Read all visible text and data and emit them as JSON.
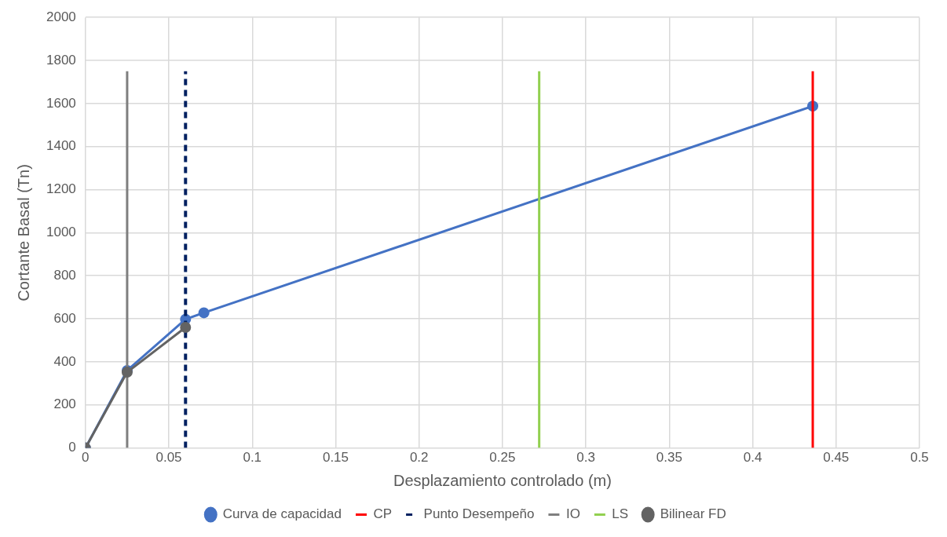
{
  "chart_data": {
    "type": "line",
    "xlabel": "Desplazamiento controlado (m)",
    "ylabel": "Cortante Basal (Tn)",
    "xlim": [
      0,
      0.5
    ],
    "xticks": [
      0,
      0.05,
      0.1,
      0.15,
      0.2,
      0.25,
      0.3,
      0.35,
      0.4,
      0.45,
      0.5
    ],
    "ylim": [
      0,
      2000
    ],
    "yticks": [
      0,
      200,
      400,
      600,
      800,
      1000,
      1200,
      1400,
      1600,
      1800,
      2000
    ],
    "grid": true,
    "legend": "bottom",
    "series": [
      {
        "name": "Curva de capacidad",
        "color": "#4472c4",
        "marker": "circle",
        "x": [
          0,
          0.025,
          0.06,
          0.071,
          0.436
        ],
        "values": [
          0,
          360,
          598,
          628,
          1588
        ]
      },
      {
        "name": "CP",
        "color": "#ff0000",
        "marker": "none",
        "x": [
          0.436,
          0.436
        ],
        "values": [
          0,
          1750
        ]
      },
      {
        "name": "Punto Desempeño",
        "color": "#002060",
        "marker": "none",
        "line_style": "dashed",
        "x": [
          0.06,
          0.06
        ],
        "values": [
          0,
          1750
        ]
      },
      {
        "name": "IO",
        "color": "#7f7f7f",
        "marker": "none",
        "x": [
          0.025,
          0.025
        ],
        "values": [
          0,
          1750
        ]
      },
      {
        "name": "LS",
        "color": "#92d050",
        "marker": "none",
        "x": [
          0.272,
          0.272
        ],
        "values": [
          0,
          1750
        ]
      },
      {
        "name": "Bilinear FD",
        "color": "#636363",
        "marker": "circle",
        "x": [
          0,
          0.025,
          0.06
        ],
        "values": [
          0,
          352,
          560
        ]
      }
    ]
  }
}
